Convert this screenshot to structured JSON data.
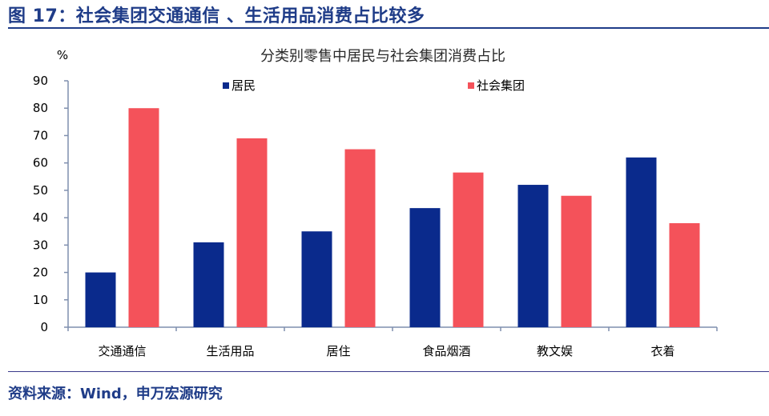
{
  "figure": {
    "title": "图 17：社会集团交通通信 、生活用品消费占比较多",
    "source": "资料来源：Wind，申万宏源研究"
  },
  "chart_data": {
    "type": "bar",
    "title": "分类别零售中居民与社会集团消费占比",
    "ylabel": "%",
    "xlabel": "",
    "ylim": [
      0,
      90
    ],
    "yticks": [
      0,
      10,
      20,
      30,
      40,
      50,
      60,
      70,
      80,
      90
    ],
    "categories": [
      "交通通信",
      "生活用品",
      "居住",
      "食品烟酒",
      "教文娱",
      "衣着"
    ],
    "series": [
      {
        "name": "居民",
        "color": "#0a2a8c",
        "values": [
          20,
          31,
          35,
          43.5,
          52,
          62
        ]
      },
      {
        "name": "社会集团",
        "color": "#f4525a",
        "values": [
          80,
          69,
          65,
          56.5,
          48,
          38
        ]
      }
    ],
    "legend_position": "top",
    "grid": false
  }
}
